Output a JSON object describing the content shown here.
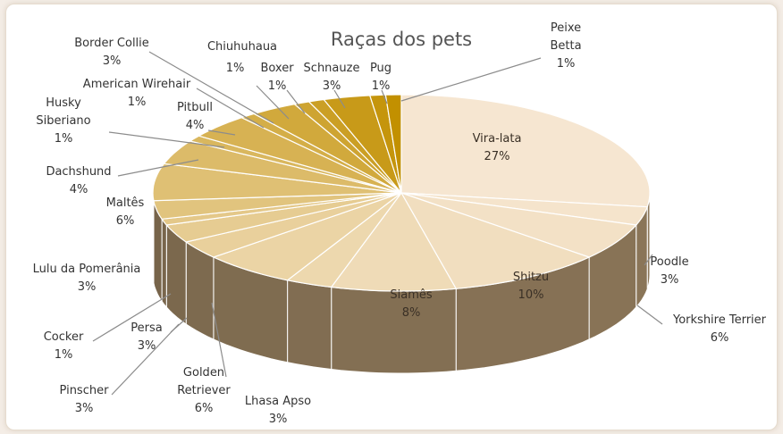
{
  "chart_data": {
    "type": "pie",
    "style": "3d",
    "title": "Raças dos pets",
    "slices": [
      {
        "label": "Vira-lata",
        "value": 27
      },
      {
        "label": "Poodle",
        "value": 3
      },
      {
        "label": "Yorkshire Terrier",
        "value": 6
      },
      {
        "label": "Shitzu",
        "value": 10
      },
      {
        "label": "Siamês",
        "value": 8
      },
      {
        "label": "Lhasa Apso",
        "value": 3
      },
      {
        "label": "Golden Retriever",
        "value": 6
      },
      {
        "label": "Pinscher",
        "value": 3
      },
      {
        "label": "Persa",
        "value": 3
      },
      {
        "label": "Cocker",
        "value": 1
      },
      {
        "label": "Lulu da Pomerânia",
        "value": 3
      },
      {
        "label": "Maltês",
        "value": 6
      },
      {
        "label": "Dachshund",
        "value": 4
      },
      {
        "label": "Husky Siberiano",
        "value": 1
      },
      {
        "label": "Pitbull",
        "value": 4
      },
      {
        "label": "American Wirehair",
        "value": 1
      },
      {
        "label": "Border Collie",
        "value": 3
      },
      {
        "label": "Chiuhuhaua",
        "value": 1
      },
      {
        "label": "Boxer",
        "value": 1
      },
      {
        "label": "Schnauze",
        "value": 3
      },
      {
        "label": "Pug",
        "value": 1
      },
      {
        "label": "Peixe Betta",
        "value": 1
      }
    ],
    "colors": {
      "light": "#f6e6d1",
      "dark": "#c29000",
      "side_light": "#8c7759",
      "side_dark": "#5f4f3a"
    }
  }
}
